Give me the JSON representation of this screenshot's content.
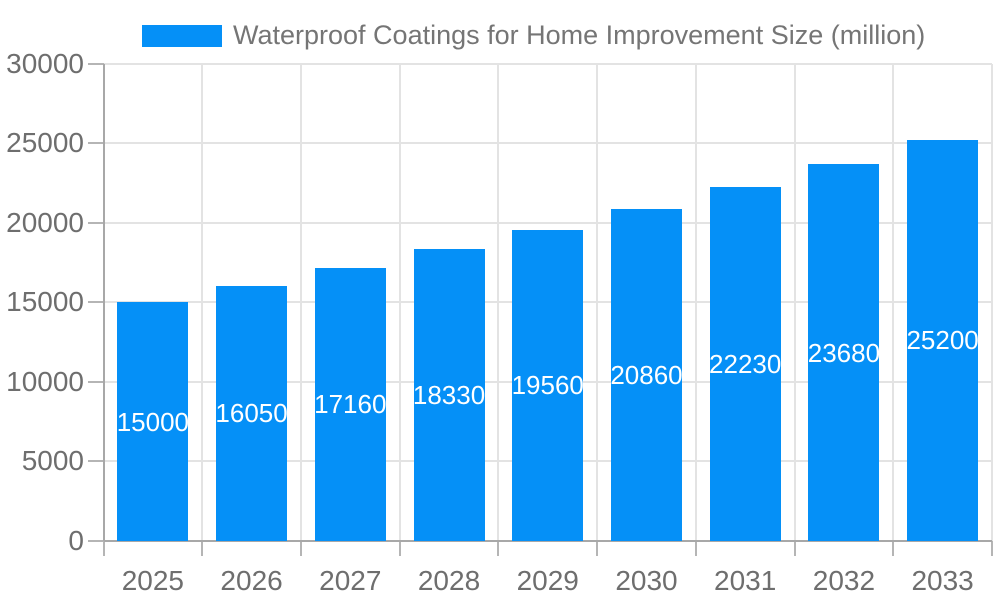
{
  "chart_data": {
    "type": "bar",
    "title": "Waterproof Coatings for Home Improvement Size (million)",
    "categories": [
      "2025",
      "2026",
      "2027",
      "2028",
      "2029",
      "2030",
      "2031",
      "2032",
      "2033"
    ],
    "values": [
      15000,
      16050,
      17160,
      18330,
      19560,
      20860,
      22230,
      23680,
      25200
    ],
    "xlabel": "",
    "ylabel": "",
    "ylim": [
      0,
      30000
    ],
    "ytick_step": 5000,
    "ytick_labels": [
      "0",
      "5000",
      "10000",
      "15000",
      "20000",
      "25000",
      "30000"
    ],
    "grid": true,
    "legend_position": "top",
    "colors": {
      "bar": "#0590f7",
      "bar_label": "#ffffff",
      "grid": "#e3e3e3",
      "axis": "#a8a8a8",
      "tick": "#b5b5b5",
      "axis_label": "#6e6e6e",
      "title": "#757575",
      "background": "#ffffff"
    }
  }
}
